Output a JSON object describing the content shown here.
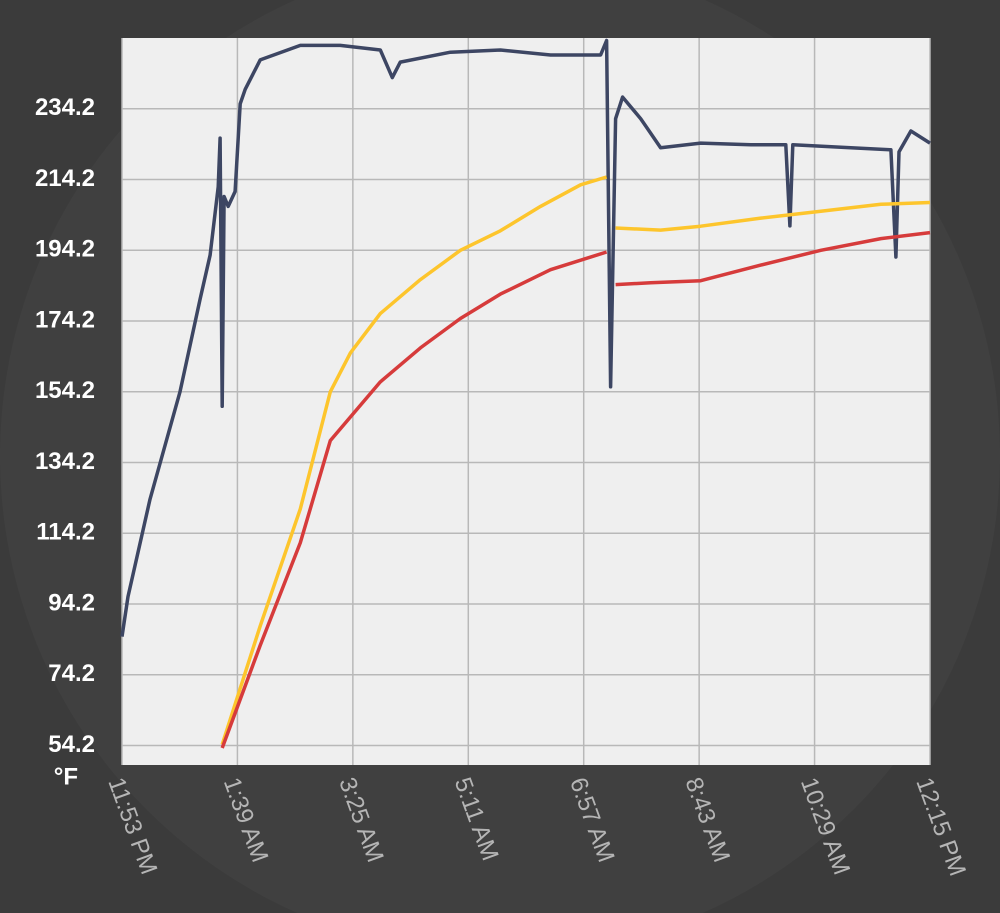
{
  "chart_data": {
    "type": "line",
    "ylabel": "°F",
    "xlim": [
      0,
      742
    ],
    "xticks": [
      {
        "value": 0,
        "label": "11:53 PM"
      },
      {
        "value": 106,
        "label": "1:39 AM"
      },
      {
        "value": 212,
        "label": "3:25 AM"
      },
      {
        "value": 318,
        "label": "5:11 AM"
      },
      {
        "value": 424,
        "label": "6:57 AM"
      },
      {
        "value": 530,
        "label": "8:43 AM"
      },
      {
        "value": 636,
        "label": "10:29 AM"
      },
      {
        "value": 742,
        "label": "12:15 PM"
      }
    ],
    "ylim": [
      48.7,
      254.2
    ],
    "yticks": [
      54.2,
      74.2,
      94.2,
      114.2,
      134.2,
      154.2,
      174.2,
      194.2,
      214.2,
      234.2
    ],
    "grid": true,
    "series": [
      {
        "color": "#3d4663",
        "x": [
          0,
          5.5,
          25.7,
          53.3,
          71.7,
          80.9,
          88.3,
          90.1,
          92,
          93.8,
          97.5,
          103.9,
          108.5,
          113.1,
          126.9,
          163.7,
          200.4,
          237.2,
          248.2,
          255.6,
          301.6,
          347.5,
          393.5,
          439.5,
          445,
          448.7,
          453.3,
          459.7,
          476.3,
          494.6,
          531.4,
          577.4,
          609.6,
          613.3,
          616,
          669.3,
          706.1,
          710.7,
          713.5,
          724.5,
          742
        ],
        "values": [
          85.0,
          96.3,
          123.8,
          154.2,
          180.4,
          192.8,
          212.1,
          225.9,
          150.1,
          209.4,
          206.6,
          210.8,
          235.6,
          239.7,
          248.0,
          252.1,
          252.1,
          250.8,
          243.0,
          247.4,
          250.2,
          250.8,
          249.4,
          249.4,
          253.5,
          155.6,
          231.4,
          237.5,
          231.4,
          223.2,
          224.5,
          224.0,
          224.0,
          201.1,
          224.0,
          223.2,
          222.6,
          192.3,
          222.0,
          227.9,
          224.5
        ]
      },
      {
        "color": "#fdc52c",
        "x": [
          92,
          126.9,
          163.7,
          191.3,
          209.7,
          237.2,
          274,
          310.8,
          347.5,
          384.3,
          421.1,
          445,
          448.7,
          453.3,
          494.6,
          531.4,
          586.6,
          641.7,
          696.9,
          742
        ],
        "values": [
          54.5,
          88.0,
          121.1,
          154.2,
          165.2,
          176.3,
          185.9,
          194.2,
          199.7,
          206.6,
          212.7,
          214.9,
          null,
          200.5,
          199.9,
          201.0,
          203.3,
          205.2,
          207.2,
          207.7
        ]
      },
      {
        "color": "#d63b3b",
        "x": [
          92,
          126.9,
          163.7,
          191.3,
          237.2,
          274,
          310.8,
          347.5,
          393.5,
          445,
          448.7,
          453.3,
          485.5,
          531.4,
          586.6,
          641.7,
          696.9,
          742
        ],
        "values": [
          53.5,
          82.5,
          111.5,
          140.4,
          157.0,
          166.6,
          174.9,
          181.8,
          188.7,
          193.7,
          null,
          184.5,
          185.0,
          185.6,
          190.0,
          194.2,
          197.5,
          199.2
        ]
      }
    ]
  }
}
